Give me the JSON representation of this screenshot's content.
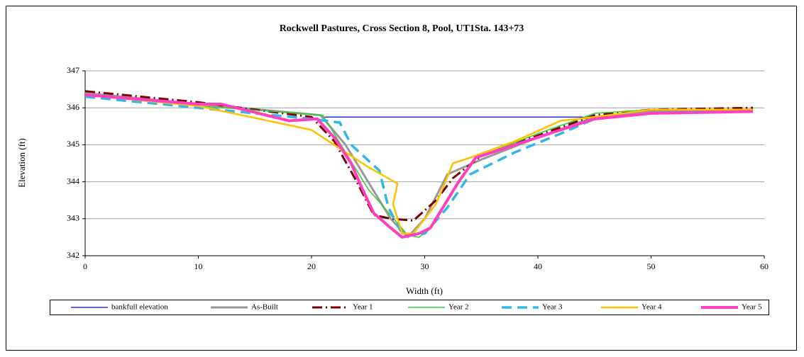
{
  "chart_data": {
    "type": "line",
    "title": "Rockwell Pastures, Cross Section 8, Pool, UT1Sta. 143+73",
    "x_label": "Width (ft)",
    "y_label": "Elevation (ft)",
    "xlim": [
      0,
      60
    ],
    "xticks": [
      0,
      10,
      20,
      30,
      40,
      50,
      60
    ],
    "ylim": [
      342,
      347
    ],
    "yticks": [
      342,
      343,
      344,
      345,
      346,
      347
    ],
    "grid": true,
    "legend": "bottom",
    "series": [
      {
        "name": "bankfull elevation",
        "color": "#0000ff",
        "x": [
          21,
          44
        ],
        "values": [
          345.75,
          345.75
        ]
      },
      {
        "name": "As-Built",
        "color": "#999999",
        "x": [
          0,
          10,
          20.8,
          23,
          25,
          27,
          28.5,
          30,
          32,
          35,
          40,
          45,
          50,
          59
        ],
        "values": [
          346.4,
          346.1,
          345.8,
          345,
          344,
          343,
          342.5,
          343,
          344.2,
          344.6,
          345.2,
          345.75,
          345.9,
          345.95
        ]
      },
      {
        "name": "Year 1",
        "color": "#7b0000",
        "x": [
          0,
          10,
          20,
          22,
          24,
          25.5,
          27,
          29,
          31,
          32.5,
          35,
          40,
          45,
          50,
          59
        ],
        "values": [
          346.45,
          346.15,
          345.75,
          345.1,
          344,
          343.1,
          343,
          342.95,
          343.5,
          344.1,
          344.7,
          345.25,
          345.8,
          345.95,
          346
        ]
      },
      {
        "name": "Year 2",
        "color": "#33cc33",
        "x": [
          0,
          10,
          21,
          23,
          25,
          27,
          28.5,
          29.5,
          30.5,
          33,
          34.5,
          40,
          45,
          50,
          59
        ],
        "values": [
          346.35,
          346.05,
          345.8,
          344.8,
          343.8,
          343.1,
          342.55,
          342.5,
          342.75,
          344,
          344.65,
          345.3,
          345.85,
          345.95,
          345.95
        ]
      },
      {
        "name": "Year 3",
        "color": "#33b5e5",
        "x": [
          0,
          10,
          20,
          22.5,
          23.5,
          26,
          26.8,
          28,
          29,
          30,
          32,
          34,
          38,
          42,
          45,
          50,
          59
        ],
        "values": [
          346.3,
          346,
          345.7,
          345.6,
          345,
          344.3,
          343.3,
          342.6,
          342.55,
          342.6,
          343.3,
          344.2,
          344.8,
          345.3,
          345.7,
          345.85,
          345.95
        ]
      },
      {
        "name": "Year 4",
        "color": "#ffc000",
        "x": [
          0,
          10,
          20,
          22,
          25,
          27.6,
          27.2,
          28,
          29,
          31,
          32.5,
          34,
          38,
          42,
          45,
          50,
          59
        ],
        "values": [
          346.35,
          346.05,
          345.4,
          345,
          344.4,
          343.95,
          343.4,
          342.6,
          342.6,
          343.4,
          344.5,
          344.65,
          345.1,
          345.65,
          345.75,
          345.95,
          345.95
        ]
      },
      {
        "name": "Year 5",
        "color": "#ff3fbf",
        "x": [
          0,
          10,
          12,
          18,
          20.5,
          22,
          23.5,
          24.5,
          25.5,
          27,
          28,
          29.5,
          30.5,
          32,
          33,
          34.5,
          40,
          45,
          50,
          59
        ],
        "values": [
          346.35,
          346.1,
          346.1,
          345.65,
          345.7,
          345.2,
          344.5,
          343.8,
          343.15,
          342.75,
          342.5,
          342.6,
          342.75,
          343.5,
          344,
          344.65,
          345.2,
          345.7,
          345.85,
          345.9
        ]
      }
    ]
  }
}
